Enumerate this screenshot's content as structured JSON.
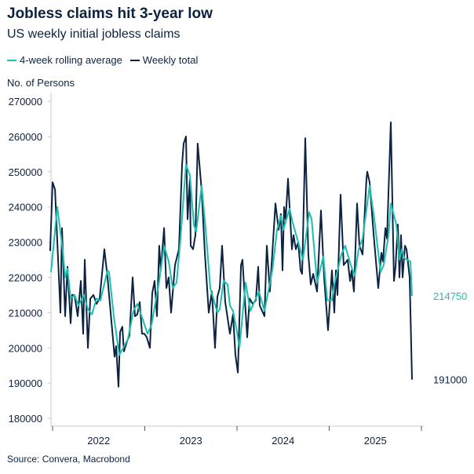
{
  "title": "Jobless claims hit 3-year low",
  "subtitle": "US weekly initial jobless claims",
  "source": "Source: Convera, Macrobond",
  "colors": {
    "rolling": "#1abfb0",
    "weekly": "#0b2240",
    "axis": "#c8c8c8"
  },
  "chart_data": {
    "type": "line",
    "title": "Jobless claims hit 3-year low",
    "subtitle": "US weekly initial jobless claims",
    "ylabel": "No. of Persons",
    "xlabel": "",
    "ylim": [
      180000,
      270000
    ],
    "xlim": [
      2021.97,
      2026.0
    ],
    "yticks": [
      "270000",
      "260000",
      "250000",
      "240000",
      "230000",
      "220000",
      "210000",
      "200000",
      "190000",
      "180000"
    ],
    "xticks": [
      "2022",
      "2023",
      "2024",
      "2025"
    ],
    "grid": false,
    "legend": "top-left",
    "end_labels": {
      "rolling": "214750",
      "weekly": "191000"
    },
    "series": [
      {
        "name": "4-week rolling average",
        "color": "#1abfb0",
        "points": [
          [
            2021.983,
            221500
          ],
          [
            2022.051,
            240000
          ],
          [
            2022.111,
            227500
          ],
          [
            2022.136,
            220000
          ],
          [
            2022.162,
            222500
          ],
          [
            2022.196,
            214000
          ],
          [
            2022.238,
            215000
          ],
          [
            2022.281,
            212000
          ],
          [
            2022.34,
            215000
          ],
          [
            2022.383,
            211000
          ],
          [
            2022.426,
            209500
          ],
          [
            2022.477,
            214000
          ],
          [
            2022.519,
            213500
          ],
          [
            2022.596,
            222000
          ],
          [
            2022.613,
            221500
          ],
          [
            2022.664,
            209000
          ],
          [
            2022.723,
            198000
          ],
          [
            2022.766,
            200000
          ],
          [
            2022.817,
            202500
          ],
          [
            2022.877,
            210500
          ],
          [
            2022.919,
            212500
          ],
          [
            2022.979,
            208000
          ],
          [
            2023.03,
            204000
          ],
          [
            2023.072,
            206500
          ],
          [
            2023.157,
            219000
          ],
          [
            2023.209,
            229000
          ],
          [
            2023.26,
            224500
          ],
          [
            2023.302,
            217000
          ],
          [
            2023.345,
            218500
          ],
          [
            2023.387,
            231000
          ],
          [
            2023.447,
            252000
          ],
          [
            2023.489,
            249000
          ],
          [
            2023.532,
            235000
          ],
          [
            2023.557,
            233000
          ],
          [
            2023.617,
            246000
          ],
          [
            2023.66,
            233500
          ],
          [
            2023.711,
            217000
          ],
          [
            2023.787,
            210000
          ],
          [
            2023.813,
            211000
          ],
          [
            2023.855,
            219000
          ],
          [
            2023.898,
            218000
          ],
          [
            2023.923,
            212000
          ],
          [
            2023.957,
            210500
          ],
          [
            2024.0,
            204500
          ],
          [
            2024.026,
            200000
          ],
          [
            2024.094,
            218500
          ],
          [
            2024.145,
            210500
          ],
          [
            2024.196,
            213500
          ],
          [
            2024.238,
            216000
          ],
          [
            2024.298,
            210500
          ],
          [
            2024.383,
            222000
          ],
          [
            2024.434,
            233500
          ],
          [
            2024.477,
            237500
          ],
          [
            2024.502,
            233500
          ],
          [
            2024.57,
            239500
          ],
          [
            2024.604,
            235500
          ],
          [
            2024.664,
            230000
          ],
          [
            2024.715,
            225000
          ],
          [
            2024.783,
            238500
          ],
          [
            2024.809,
            236500
          ],
          [
            2024.868,
            218500
          ],
          [
            2024.936,
            226000
          ],
          [
            2024.979,
            213500
          ],
          [
            2025.03,
            213500
          ],
          [
            2025.055,
            218000
          ],
          [
            2025.132,
            226500
          ],
          [
            2025.174,
            229000
          ],
          [
            2025.234,
            223500
          ],
          [
            2025.277,
            220500
          ],
          [
            2025.319,
            228000
          ],
          [
            2025.362,
            231000
          ],
          [
            2025.438,
            246000
          ],
          [
            2025.489,
            236500
          ],
          [
            2025.557,
            221500
          ],
          [
            2025.591,
            223500
          ],
          [
            2025.643,
            232000
          ],
          [
            2025.668,
            241000
          ],
          [
            2025.728,
            235000
          ],
          [
            2025.762,
            225000
          ],
          [
            2025.787,
            228000
          ],
          [
            2025.813,
            225500
          ],
          [
            2025.847,
            225000
          ],
          [
            2025.881,
            224500
          ],
          [
            2025.898,
            214750
          ]
        ]
      },
      {
        "name": "Weekly total",
        "color": "#0b2240",
        "points": [
          [
            2021.974,
            227500
          ],
          [
            2022.0,
            247000
          ],
          [
            2022.026,
            245000
          ],
          [
            2022.085,
            210000
          ],
          [
            2022.102,
            234000
          ],
          [
            2022.136,
            209000
          ],
          [
            2022.162,
            223000
          ],
          [
            2022.196,
            207000
          ],
          [
            2022.213,
            215000
          ],
          [
            2022.238,
            215000
          ],
          [
            2022.272,
            209000
          ],
          [
            2022.306,
            219000
          ],
          [
            2022.332,
            204000
          ],
          [
            2022.349,
            225000
          ],
          [
            2022.383,
            200000
          ],
          [
            2022.409,
            214000
          ],
          [
            2022.443,
            215000
          ],
          [
            2022.477,
            212500
          ],
          [
            2022.511,
            214000
          ],
          [
            2022.562,
            228000
          ],
          [
            2022.596,
            220000
          ],
          [
            2022.672,
            197500
          ],
          [
            2022.689,
            200500
          ],
          [
            2022.715,
            189000
          ],
          [
            2022.732,
            204500
          ],
          [
            2022.757,
            206000
          ],
          [
            2022.774,
            199000
          ],
          [
            2022.809,
            202000
          ],
          [
            2022.834,
            203500
          ],
          [
            2022.868,
            220000
          ],
          [
            2022.894,
            209000
          ],
          [
            2022.919,
            209500
          ],
          [
            2022.945,
            213000
          ],
          [
            2022.97,
            204000
          ],
          [
            2022.996,
            204000
          ],
          [
            2023.021,
            203000
          ],
          [
            2023.055,
            200000
          ],
          [
            2023.081,
            215500
          ],
          [
            2023.106,
            219000
          ],
          [
            2023.132,
            209000
          ],
          [
            2023.157,
            229000
          ],
          [
            2023.174,
            222000
          ],
          [
            2023.209,
            234000
          ],
          [
            2023.234,
            217000
          ],
          [
            2023.26,
            220000
          ],
          [
            2023.285,
            210000
          ],
          [
            2023.328,
            223500
          ],
          [
            2023.37,
            228000
          ],
          [
            2023.404,
            252000
          ],
          [
            2023.421,
            258000
          ],
          [
            2023.447,
            260000
          ],
          [
            2023.464,
            236500
          ],
          [
            2023.489,
            248000
          ],
          [
            2023.498,
            229000
          ],
          [
            2023.523,
            228000
          ],
          [
            2023.549,
            232000
          ],
          [
            2023.574,
            258000
          ],
          [
            2023.617,
            244500
          ],
          [
            2023.651,
            227000
          ],
          [
            2023.694,
            210000
          ],
          [
            2023.728,
            216000
          ],
          [
            2023.762,
            200000
          ],
          [
            2023.787,
            214500
          ],
          [
            2023.813,
            217000
          ],
          [
            2023.838,
            229000
          ],
          [
            2023.872,
            213000
          ],
          [
            2023.923,
            204000
          ],
          [
            2023.957,
            209500
          ],
          [
            2023.983,
            198000
          ],
          [
            2024.009,
            193000
          ],
          [
            2024.043,
            223500
          ],
          [
            2024.06,
            225000
          ],
          [
            2024.111,
            203000
          ],
          [
            2024.136,
            214000
          ],
          [
            2024.17,
            212500
          ],
          [
            2024.204,
            213500
          ],
          [
            2024.23,
            223000
          ],
          [
            2024.247,
            212000
          ],
          [
            2024.298,
            209000
          ],
          [
            2024.323,
            229000
          ],
          [
            2024.357,
            216000
          ],
          [
            2024.417,
            241000
          ],
          [
            2024.451,
            233500
          ],
          [
            2024.477,
            238000
          ],
          [
            2024.494,
            222000
          ],
          [
            2024.511,
            240000
          ],
          [
            2024.528,
            236500
          ],
          [
            2024.553,
            248000
          ],
          [
            2024.596,
            228000
          ],
          [
            2024.613,
            232000
          ],
          [
            2024.638,
            228000
          ],
          [
            2024.664,
            230000
          ],
          [
            2024.689,
            222000
          ],
          [
            2024.706,
            221000
          ],
          [
            2024.74,
            259500
          ],
          [
            2024.774,
            226500
          ],
          [
            2024.8,
            218000
          ],
          [
            2024.826,
            221000
          ],
          [
            2024.868,
            216000
          ],
          [
            2024.911,
            239000
          ],
          [
            2024.945,
            220000
          ],
          [
            2024.987,
            205000
          ],
          [
            2025.03,
            222000
          ],
          [
            2025.055,
            210000
          ],
          [
            2025.072,
            222000
          ],
          [
            2025.089,
            215000
          ],
          [
            2025.123,
            243500
          ],
          [
            2025.157,
            223500
          ],
          [
            2025.2,
            225000
          ],
          [
            2025.226,
            219000
          ],
          [
            2025.243,
            222000
          ],
          [
            2025.268,
            216000
          ],
          [
            2025.302,
            241000
          ],
          [
            2025.328,
            229000
          ],
          [
            2025.362,
            226500
          ],
          [
            2025.404,
            248000
          ],
          [
            2025.413,
            250000
          ],
          [
            2025.438,
            247000
          ],
          [
            2025.481,
            232500
          ],
          [
            2025.532,
            217000
          ],
          [
            2025.566,
            227000
          ],
          [
            2025.583,
            224500
          ],
          [
            2025.609,
            234000
          ],
          [
            2025.626,
            231000
          ],
          [
            2025.668,
            264000
          ],
          [
            2025.702,
            219000
          ],
          [
            2025.719,
            223000
          ],
          [
            2025.745,
            235000
          ],
          [
            2025.762,
            220000
          ],
          [
            2025.779,
            232000
          ],
          [
            2025.796,
            220000
          ],
          [
            2025.821,
            229000
          ],
          [
            2025.838,
            228000
          ],
          [
            2025.872,
            220000
          ],
          [
            2025.898,
            191000
          ]
        ]
      }
    ]
  }
}
